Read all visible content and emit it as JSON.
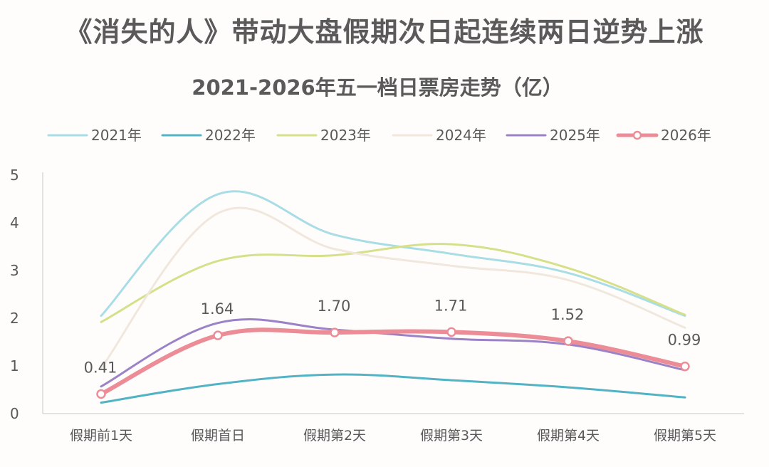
{
  "headline": "《消失的人》带动大盘假期次日起连续两日逆势上涨",
  "chart_data": {
    "type": "line",
    "title": "2021-2026年五一档日票房走势（亿）",
    "categories": [
      "假期前1天",
      "假期首日",
      "假期第2天",
      "假期第3天",
      "假期第4天",
      "假期第5天"
    ],
    "ylim": [
      0,
      5
    ],
    "yticks": [
      "0",
      "1",
      "2",
      "3",
      "4",
      "5"
    ],
    "grid": false,
    "legend_position": "top",
    "series": [
      {
        "name": "2021年",
        "color": "#a8dde6",
        "values": [
          2.05,
          4.6,
          3.75,
          3.35,
          2.95,
          2.05
        ]
      },
      {
        "name": "2022年",
        "color": "#52b3c4",
        "values": [
          0.23,
          0.62,
          0.82,
          0.7,
          0.55,
          0.34
        ]
      },
      {
        "name": "2023年",
        "color": "#d6e08a",
        "values": [
          1.92,
          3.2,
          3.32,
          3.55,
          3.05,
          2.07
        ]
      },
      {
        "name": "2024年",
        "color": "#f0e7dd",
        "values": [
          0.95,
          4.2,
          3.45,
          3.1,
          2.8,
          1.8
        ]
      },
      {
        "name": "2025年",
        "color": "#9b82c7",
        "values": [
          0.57,
          1.9,
          1.76,
          1.57,
          1.45,
          0.91
        ]
      },
      {
        "name": "2026年",
        "color": "#ec8c97",
        "values": [
          0.41,
          1.64,
          1.7,
          1.71,
          1.52,
          0.99
        ],
        "data_labels": [
          "0.41",
          "1.64",
          "1.70",
          "1.71",
          "1.52",
          "0.99"
        ]
      }
    ]
  }
}
